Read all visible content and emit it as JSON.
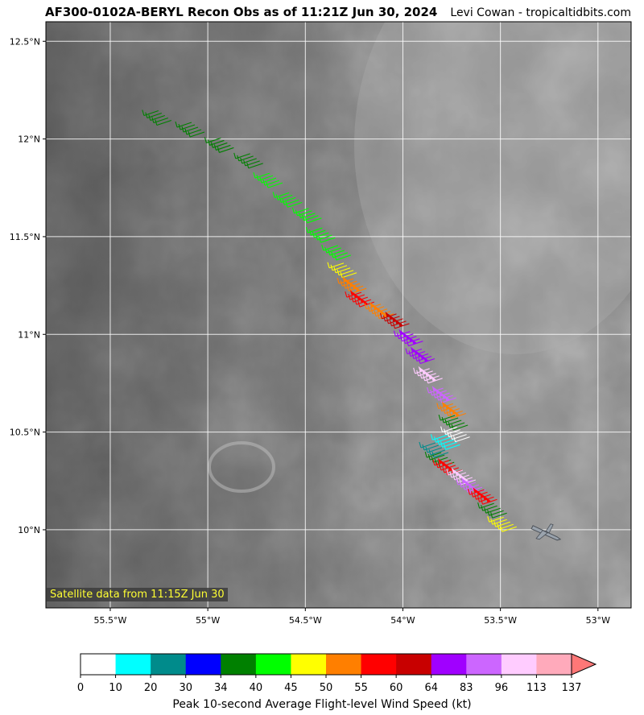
{
  "title": "AF300-0102A-BERYL Recon Obs as of 11:21Z Jun 30, 2024",
  "credit": "Levi Cowan - tropicaltidbits.com",
  "satellite_label": "Satellite data from 11:15Z Jun 30",
  "map": {
    "lon_range": [
      -55.83,
      -52.83
    ],
    "lat_range": [
      9.6,
      12.6
    ],
    "lon_ticks": [
      {
        "value": -55.5,
        "label": "55.5°W"
      },
      {
        "value": -55.0,
        "label": "55°W"
      },
      {
        "value": -54.5,
        "label": "54.5°W"
      },
      {
        "value": -54.0,
        "label": "54°W"
      },
      {
        "value": -53.5,
        "label": "53.5°W"
      },
      {
        "value": -53.0,
        "label": "53°W"
      }
    ],
    "lat_ticks": [
      {
        "value": 12.5,
        "label": "12.5°N"
      },
      {
        "value": 12.0,
        "label": "12°N"
      },
      {
        "value": 11.5,
        "label": "11.5°N"
      },
      {
        "value": 11.0,
        "label": "11°N"
      },
      {
        "value": 10.5,
        "label": "10.5°N"
      },
      {
        "value": 10.0,
        "label": "10°N"
      }
    ],
    "grid": true,
    "aircraft_icon": "airplane-icon",
    "aircraft_position": {
      "lon": -53.3,
      "lat": 9.98
    },
    "flight_track": [
      {
        "lon": -55.22,
        "lat": 12.12,
        "wind_kt": 36
      },
      {
        "lon": -55.05,
        "lat": 12.06,
        "wind_kt": 38
      },
      {
        "lon": -54.9,
        "lat": 11.98,
        "wind_kt": 37
      },
      {
        "lon": -54.75,
        "lat": 11.9,
        "wind_kt": 39
      },
      {
        "lon": -54.65,
        "lat": 11.8,
        "wind_kt": 42
      },
      {
        "lon": -54.55,
        "lat": 11.7,
        "wind_kt": 43
      },
      {
        "lon": -54.45,
        "lat": 11.62,
        "wind_kt": 42
      },
      {
        "lon": -54.38,
        "lat": 11.52,
        "wind_kt": 44
      },
      {
        "lon": -54.3,
        "lat": 11.43,
        "wind_kt": 43
      },
      {
        "lon": -54.27,
        "lat": 11.34,
        "wind_kt": 47
      },
      {
        "lon": -54.22,
        "lat": 11.26,
        "wind_kt": 52
      },
      {
        "lon": -54.18,
        "lat": 11.19,
        "wind_kt": 57
      },
      {
        "lon": -54.08,
        "lat": 11.13,
        "wind_kt": 52
      },
      {
        "lon": -54.0,
        "lat": 11.08,
        "wind_kt": 62
      },
      {
        "lon": -53.93,
        "lat": 10.99,
        "wind_kt": 70
      },
      {
        "lon": -53.87,
        "lat": 10.9,
        "wind_kt": 72
      },
      {
        "lon": -53.83,
        "lat": 10.8,
        "wind_kt": 100
      },
      {
        "lon": -53.76,
        "lat": 10.7,
        "wind_kt": 90
      },
      {
        "lon": -53.71,
        "lat": 10.62,
        "wind_kt": 52
      },
      {
        "lon": -53.7,
        "lat": 10.56,
        "wind_kt": 36
      },
      {
        "lon": -53.69,
        "lat": 10.5,
        "wind_kt": 8
      },
      {
        "lon": -53.74,
        "lat": 10.46,
        "wind_kt": 15
      },
      {
        "lon": -53.8,
        "lat": 10.42,
        "wind_kt": 28
      },
      {
        "lon": -53.77,
        "lat": 10.37,
        "wind_kt": 36
      },
      {
        "lon": -53.73,
        "lat": 10.33,
        "wind_kt": 58
      },
      {
        "lon": -53.66,
        "lat": 10.28,
        "wind_kt": 100
      },
      {
        "lon": -53.61,
        "lat": 10.23,
        "wind_kt": 88
      },
      {
        "lon": -53.55,
        "lat": 10.18,
        "wind_kt": 58
      },
      {
        "lon": -53.5,
        "lat": 10.11,
        "wind_kt": 38
      },
      {
        "lon": -53.45,
        "lat": 10.04,
        "wind_kt": 47
      }
    ]
  },
  "colorbar": {
    "title": "Peak 10-second Average Flight-level Wind Speed (kt)",
    "ticks": [
      "0",
      "10",
      "20",
      "30",
      "34",
      "40",
      "45",
      "50",
      "55",
      "60",
      "64",
      "83",
      "96",
      "113",
      "137"
    ],
    "colors": [
      "#ffffff",
      "#00ffff",
      "#008b8b",
      "#0000ff",
      "#008000",
      "#00ff00",
      "#ffff00",
      "#ff7f00",
      "#ff0000",
      "#c80000",
      "#a000ff",
      "#cc66ff",
      "#ffccff",
      "#ffaabb"
    ],
    "extend_color": "#ff7777"
  }
}
